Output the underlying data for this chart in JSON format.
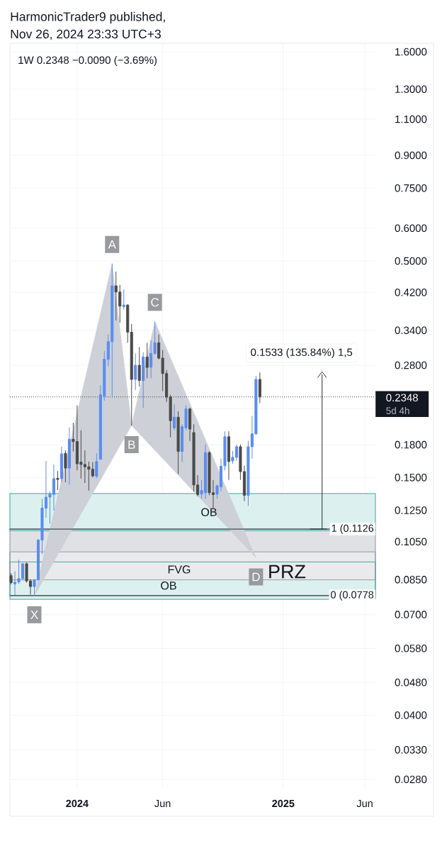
{
  "chart_data": {
    "type": "candlestick",
    "title": "HarmonicTrader9 published,",
    "subtitle": "Nov 26, 2024 23:33 UTC+3",
    "series": [
      {
        "type": "area",
        "color": "#cdd0d6",
        "x": [
          "2023-10-16",
          "2024-03-04",
          "2024-04-08",
          "2024-05-20",
          "2024-11-18"
        ],
        "values": [
          0.0778,
          0.4927,
          0.2003,
          0.3572,
          0.096
        ],
        "value_labels": [
          "X",
          "A",
          "B",
          "C",
          "D"
        ]
      },
      {
        "type": "line",
        "name": "0.1533 (135.84%) 1,5",
        "color": "#131722",
        "x": [
          "2025-03-17",
          "2025-03-17"
        ],
        "values": [
          0.1126,
          0.2659
        ]
      },
      {
        "x": [
          "2023-09-04",
          "2023-09-11",
          "2023-09-18",
          "2023-09-25",
          "2023-10-02",
          "2023-10-09",
          "2023-10-16",
          "2023-10-23",
          "2023-10-30",
          "2023-11-06",
          "2023-11-13",
          "2023-11-20",
          "2023-11-27",
          "2023-12-04",
          "2023-12-11",
          "2023-12-18",
          "2023-12-25",
          "2024-01-01",
          "2024-01-08",
          "2024-01-15",
          "2024-01-22",
          "2024-01-29",
          "2024-02-05",
          "2024-02-12",
          "2024-02-19",
          "2024-02-26",
          "2024-03-04",
          "2024-03-11",
          "2024-03-18",
          "2024-03-25",
          "2024-04-01",
          "2024-04-08",
          "2024-04-15",
          "2024-04-22",
          "2024-04-29",
          "2024-05-06",
          "2024-05-13",
          "2024-05-20",
          "2024-05-27",
          "2024-06-03",
          "2024-06-10",
          "2024-06-17",
          "2024-06-24",
          "2024-07-01",
          "2024-07-08",
          "2024-07-15",
          "2024-07-22",
          "2024-07-29",
          "2024-08-05",
          "2024-08-12",
          "2024-08-19",
          "2024-08-26",
          "2024-09-02",
          "2024-09-09",
          "2024-09-16",
          "2024-09-23",
          "2024-09-30",
          "2024-10-07",
          "2024-10-14",
          "2024-10-21",
          "2024-10-28",
          "2024-11-04",
          "2024-11-11",
          "2024-11-18",
          "2024-11-25"
        ],
        "ohlc": [
          [
            0.0869,
            0.0881,
            0.0828,
            0.0836
          ],
          [
            0.083,
            0.089,
            0.078,
            0.0838
          ],
          [
            0.0839,
            0.095,
            0.083,
            0.0855
          ],
          [
            0.0855,
            0.0929,
            0.0847,
            0.0929
          ],
          [
            0.0929,
            0.0934,
            0.0836,
            0.0844
          ],
          [
            0.0844,
            0.0852,
            0.0782,
            0.0818
          ],
          [
            0.0818,
            0.0852,
            0.0778,
            0.0849
          ],
          [
            0.0849,
            0.1066,
            0.0847,
            0.1059
          ],
          [
            0.1059,
            0.1333,
            0.0979,
            0.1265
          ],
          [
            0.1265,
            0.1645,
            0.12,
            0.1345
          ],
          [
            0.1345,
            0.1387,
            0.1161,
            0.1368
          ],
          [
            0.1365,
            0.1613,
            0.1248,
            0.1491
          ],
          [
            0.1493,
            0.1555,
            0.14,
            0.1484
          ],
          [
            0.1491,
            0.178,
            0.1461,
            0.1711
          ],
          [
            0.1716,
            0.1745,
            0.1461,
            0.1581
          ],
          [
            0.1581,
            0.1982,
            0.1442,
            0.1856
          ],
          [
            0.1856,
            0.2035,
            0.1734,
            0.1832
          ],
          [
            0.1832,
            0.2239,
            0.1561,
            0.1619
          ],
          [
            0.1634,
            0.1951,
            0.1491,
            0.1613
          ],
          [
            0.1613,
            0.1745,
            0.1455,
            0.1592
          ],
          [
            0.1592,
            0.1639,
            0.1394,
            0.1571
          ],
          [
            0.1571,
            0.1634,
            0.1501,
            0.1514
          ],
          [
            0.151,
            0.1718,
            0.1497,
            0.1639
          ],
          [
            0.166,
            0.2508,
            0.1658,
            0.2376
          ],
          [
            0.2361,
            0.303,
            0.23,
            0.2894
          ],
          [
            0.2894,
            0.3321,
            0.2782,
            0.3193
          ],
          [
            0.3193,
            0.4927,
            0.2361,
            0.4355
          ],
          [
            0.4355,
            0.4713,
            0.3594,
            0.4208
          ],
          [
            0.4208,
            0.4377,
            0.3548,
            0.3889
          ],
          [
            0.388,
            0.427,
            0.3813,
            0.3915
          ],
          [
            0.3915,
            0.393,
            0.3173,
            0.3366
          ],
          [
            0.3366,
            0.3524,
            0.2003,
            0.2588
          ],
          [
            0.2588,
            0.299,
            0.2439,
            0.28
          ],
          [
            0.28,
            0.3099,
            0.2488,
            0.2571
          ],
          [
            0.2571,
            0.301,
            0.2211,
            0.2932
          ],
          [
            0.2932,
            0.3173,
            0.2605,
            0.2767
          ],
          [
            0.277,
            0.3214,
            0.2605,
            0.299
          ],
          [
            0.299,
            0.3572,
            0.297,
            0.3173
          ],
          [
            0.3173,
            0.3321,
            0.2894,
            0.2913
          ],
          [
            0.2913,
            0.305,
            0.2423,
            0.2674
          ],
          [
            0.2674,
            0.2727,
            0.2284,
            0.2345
          ],
          [
            0.2345,
            0.2376,
            0.1876,
            0.2057
          ],
          [
            0.1978,
            0.2254,
            0.1952,
            0.2098
          ],
          [
            0.2098,
            0.2167,
            0.153,
            0.1734
          ],
          [
            0.1734,
            0.2017,
            0.1634,
            0.199
          ],
          [
            0.1978,
            0.2239,
            0.1952,
            0.2196
          ],
          [
            0.2196,
            0.2211,
            0.1839,
            0.1964
          ],
          [
            0.1926,
            0.2017,
            0.1387,
            0.1439
          ],
          [
            0.1439,
            0.152,
            0.135,
            0.1364
          ],
          [
            0.1368,
            0.148,
            0.1333,
            0.1396
          ],
          [
            0.1378,
            0.1803,
            0.1333,
            0.1723
          ],
          [
            0.1723,
            0.1734,
            0.1359,
            0.1378
          ],
          [
            0.1378,
            0.148,
            0.1261,
            0.1364
          ],
          [
            0.1368,
            0.1442,
            0.1333,
            0.1433
          ],
          [
            0.1424,
            0.1667,
            0.1387,
            0.1597
          ],
          [
            0.1602,
            0.1939,
            0.1561,
            0.1882
          ],
          [
            0.1882,
            0.1939,
            0.148,
            0.1639
          ],
          [
            0.1645,
            0.1738,
            0.1619,
            0.1678
          ],
          [
            0.1678,
            0.1801,
            0.1645,
            0.178
          ],
          [
            0.178,
            0.1803,
            0.148,
            0.155
          ],
          [
            0.155,
            0.1602,
            0.1315,
            0.1359
          ],
          [
            0.1359,
            0.1839,
            0.1281,
            0.178
          ],
          [
            0.178,
            0.2111,
            0.1667,
            0.1913
          ],
          [
            0.1913,
            0.2639,
            0.1901,
            0.2588
          ],
          [
            0.2588,
            0.2692,
            0.2269,
            0.2348
          ]
        ],
        "colors": [
          "#4a4a4a",
          "#5b8def",
          "#5b8def",
          "#5b8def",
          "#4a4a4a",
          "#4a4a4a",
          "#5b8def",
          "#5b8def",
          "#5b8def",
          "#5b8def",
          "#5b8def",
          "#5b8def",
          "#4a4a4a",
          "#5b8def",
          "#4a4a4a",
          "#5b8def",
          "#4a4a4a",
          "#4a4a4a",
          "#4a4a4a",
          "#4a4a4a",
          "#4a4a4a",
          "#4a4a4a",
          "#5b8def",
          "#5b8def",
          "#5b8def",
          "#5b8def",
          "#5b8def",
          "#4a4a4a",
          "#4a4a4a",
          "#5b8def",
          "#4a4a4a",
          "#4a4a4a",
          "#5b8def",
          "#4a4a4a",
          "#5b8def",
          "#4a4a4a",
          "#5b8def",
          "#5b8def",
          "#4a4a4a",
          "#4a4a4a",
          "#4a4a4a",
          "#4a4a4a",
          "#5b8def",
          "#4a4a4a",
          "#5b8def",
          "#5b8def",
          "#4a4a4a",
          "#4a4a4a",
          "#4a4a4a",
          "#5b8def",
          "#5b8def",
          "#4a4a4a",
          "#4a4a4a",
          "#5b8def",
          "#5b8def",
          "#5b8def",
          "#4a4a4a",
          "#5b8def",
          "#5b8def",
          "#4a4a4a",
          "#4a4a4a",
          "#5b8def",
          "#5b8def",
          "#5b8def",
          "#4a4a4a"
        ]
      }
    ],
    "xlim": [
      "2023-09-02",
      "2025-06-21"
    ],
    "xticks": [
      {
        "value": "2024-01-01",
        "label": "2024"
      },
      {
        "value": "2024-06-03",
        "label": "Jun"
      },
      {
        "value": "2025-01-06",
        "label": "2025"
      },
      {
        "value": "2025-06-02",
        "label": "Jun"
      }
    ],
    "ylim": [
      0.0266,
      1.678
    ],
    "yticks": [
      {
        "value": 1.6,
        "label": "1.6000"
      },
      {
        "value": 1.3,
        "label": "1.3000"
      },
      {
        "value": 1.1,
        "label": "1.1000"
      },
      {
        "value": 0.9,
        "label": "0.9000"
      },
      {
        "value": 0.75,
        "label": "0.7500"
      },
      {
        "value": 0.6,
        "label": "0.6000"
      },
      {
        "value": 0.5,
        "label": "0.5000"
      },
      {
        "value": 0.42,
        "label": "0.4200"
      },
      {
        "value": 0.34,
        "label": "0.3400"
      },
      {
        "value": 0.28,
        "label": "0.2800"
      },
      {
        "value": 0.22,
        "label": null
      },
      {
        "value": 0.18,
        "label": "0.1800"
      },
      {
        "value": 0.15,
        "label": "0.1500"
      },
      {
        "value": 0.125,
        "label": "0.1250"
      },
      {
        "value": 0.105,
        "label": "0.1050"
      },
      {
        "value": 0.085,
        "label": "0.0850"
      },
      {
        "value": 0.07,
        "label": "0.0700"
      },
      {
        "value": 0.058,
        "label": "0.0580"
      },
      {
        "value": 0.048,
        "label": "0.0480"
      },
      {
        "value": 0.04,
        "label": "0.0400"
      },
      {
        "value": 0.033,
        "label": "0.0330"
      },
      {
        "value": 0.028,
        "label": "0.0280"
      }
    ],
    "log": "y",
    "grid": true,
    "bands": [
      {
        "axis": "y",
        "from": 0.0778,
        "to": 0.1126,
        "label": "PRZ",
        "color": "#e0e1e5"
      },
      {
        "axis": "y",
        "from": 0.0762,
        "to": 0.0938,
        "label": "OB",
        "color": "#dcf1ef"
      },
      {
        "axis": "y",
        "from": 0.0849,
        "to": 0.0992,
        "label": "FVG",
        "color": "#e9eaec"
      },
      {
        "axis": "y",
        "from": 0.1116,
        "to": 0.1372,
        "label": "OB",
        "color": "#dcf1ef"
      }
    ],
    "ref_lines": [
      {
        "axis": "y",
        "value": 0.1126,
        "label": "1 (0.1126",
        "color": "#131722"
      },
      {
        "axis": "y",
        "value": 0.0778,
        "label": "0 (0.0778",
        "color": "#131722"
      },
      {
        "axis": "y",
        "value": 0.2348,
        "label": "0.2348",
        "color": "#131722",
        "line_style": "dotted"
      }
    ],
    "annotations": [
      "1W 0.2348 −0.0090 (−3.69%)",
      "5d 4h"
    ]
  }
}
